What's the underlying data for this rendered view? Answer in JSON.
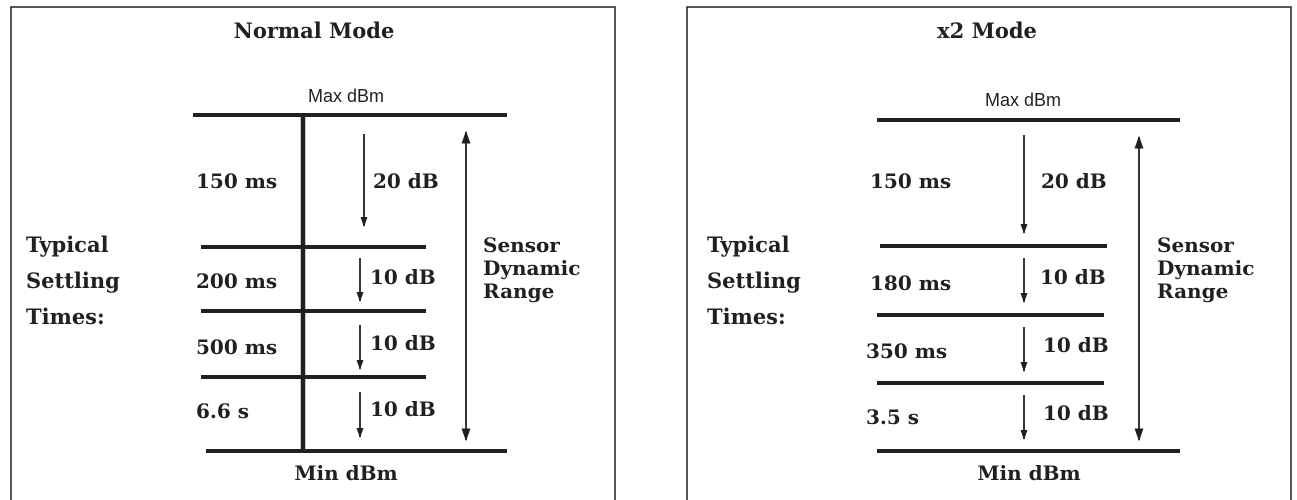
{
  "panels": [
    {
      "title": "Normal Mode",
      "max_label": "Max dBm",
      "min_label": "Min dBm",
      "side_label": [
        "Typical",
        "Settling",
        "Times:"
      ],
      "range_label": [
        "Sensor",
        "Dynamic",
        "Range"
      ],
      "rows": [
        {
          "time": "150 ms",
          "step": "20 dB"
        },
        {
          "time": "200 ms",
          "step": "10 dB"
        },
        {
          "time": "500 ms",
          "step": "10 dB"
        },
        {
          "time": "6.6 s",
          "step": "10 dB"
        }
      ]
    },
    {
      "title": "x2 Mode",
      "max_label": "Max dBm",
      "min_label": "Min dBm",
      "side_label": [
        "Typical",
        "Settling",
        "Times:"
      ],
      "range_label": [
        "Sensor",
        "Dynamic",
        "Range"
      ],
      "rows": [
        {
          "time": "150 ms",
          "step": "20 dB"
        },
        {
          "time": "180 ms",
          "step": "10 dB"
        },
        {
          "time": "350 ms",
          "step": "10 dB"
        },
        {
          "time": "3.5 s",
          "step": "10 dB"
        }
      ]
    }
  ]
}
